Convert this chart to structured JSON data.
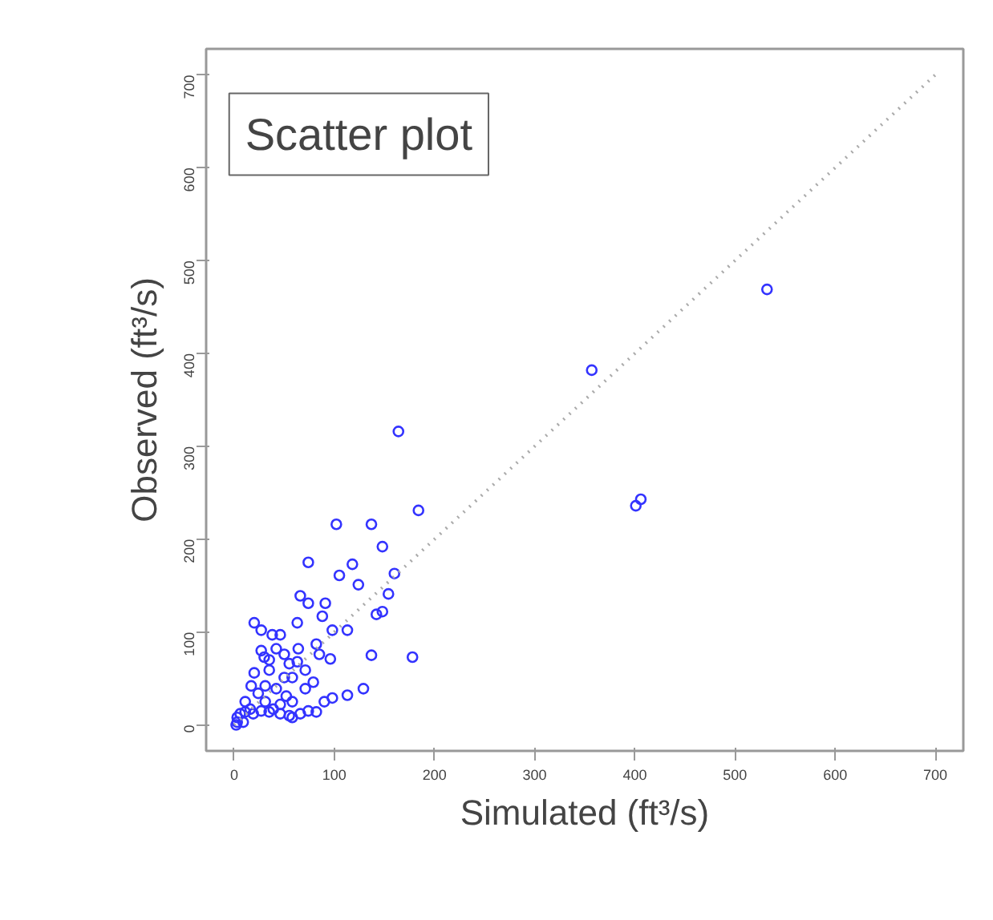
{
  "chart_data": {
    "type": "scatter",
    "title": "Scatter plot",
    "xlabel": "Simulated (ft³/s)",
    "ylabel": "Observed (ft³/s)",
    "xlim": [
      -28,
      728
    ],
    "ylim": [
      -28,
      728
    ],
    "xticks": [
      0,
      100,
      200,
      300,
      400,
      500,
      600,
      700
    ],
    "yticks": [
      0,
      100,
      200,
      300,
      400,
      500,
      600,
      700
    ],
    "grid": false,
    "series": [
      {
        "color": "#3333ff",
        "marker": "circle",
        "x": [
          532,
          357,
          164,
          406,
          401,
          184,
          102,
          137,
          118,
          74,
          148,
          154,
          124,
          160,
          148,
          178,
          137,
          105,
          82,
          63,
          20,
          98,
          66,
          74,
          91,
          46,
          27,
          42,
          50,
          64,
          85,
          88,
          96,
          71,
          79,
          71,
          90,
          98,
          58,
          46,
          35,
          31,
          24,
          11,
          3,
          6,
          11,
          16,
          19,
          27,
          35,
          39,
          46,
          55,
          66,
          74,
          82,
          113,
          129,
          42,
          52,
          58,
          63,
          35,
          30,
          55,
          20,
          17,
          50,
          9,
          3,
          2,
          31,
          58,
          27,
          38,
          113,
          142
        ],
        "values": [
          469,
          382,
          316,
          243,
          236,
          231,
          216,
          216,
          173,
          175,
          192,
          141,
          151,
          163,
          122,
          73,
          75,
          161,
          87,
          110,
          110,
          102,
          139,
          131,
          131,
          97,
          80,
          82,
          76,
          82,
          76,
          117,
          71,
          59,
          46,
          39,
          25,
          29,
          25,
          22,
          59,
          42,
          34,
          25,
          8,
          12,
          14,
          17,
          12,
          15,
          14,
          17,
          12,
          10,
          12,
          15,
          14,
          32,
          39,
          39,
          31,
          51,
          68,
          70,
          73,
          66,
          56,
          42,
          51,
          3,
          3,
          0,
          25,
          8,
          102,
          97,
          102,
          119
        ]
      },
      {
        "type": "line",
        "color": "#aaaaaa",
        "line_style": "dotted",
        "marker": "none",
        "x": [
          0,
          700
        ],
        "values": [
          0,
          700
        ]
      }
    ]
  }
}
